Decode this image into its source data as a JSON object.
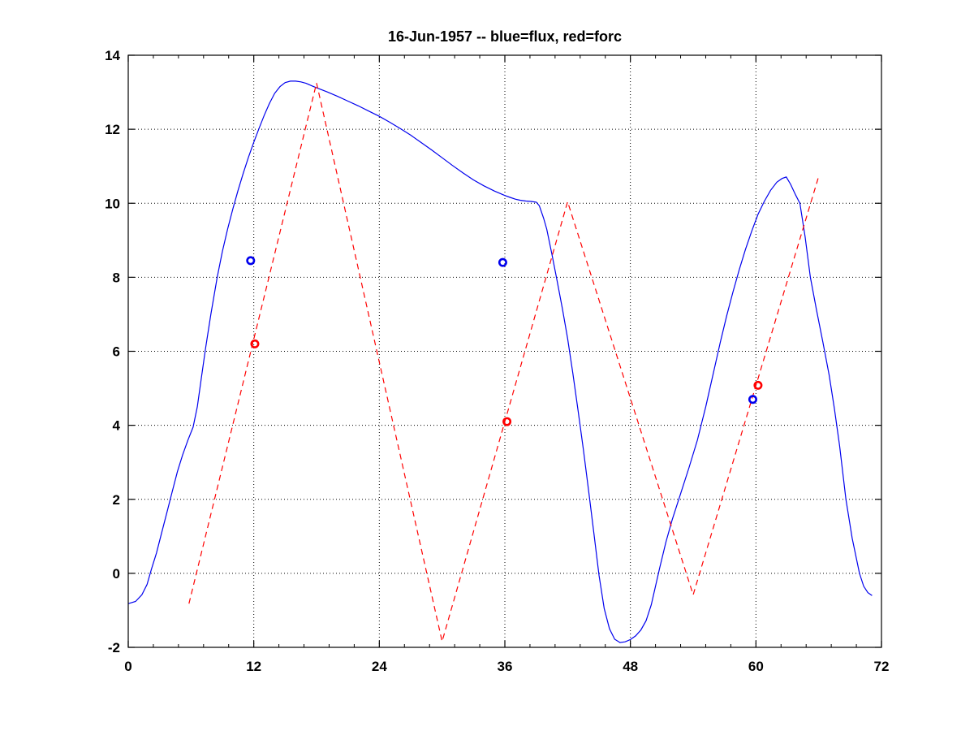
{
  "chart_data": {
    "type": "line",
    "title": "16-Jun-1957 -- blue=flux, red=forc",
    "xlabel": "",
    "ylabel": "",
    "xlim": [
      0,
      72
    ],
    "ylim": [
      -2,
      14
    ],
    "x_ticks": [
      0,
      12,
      24,
      36,
      48,
      60,
      72
    ],
    "y_ticks": [
      -2,
      0,
      2,
      4,
      6,
      8,
      10,
      12,
      14
    ],
    "x_minor_divisions": 5,
    "grid": "dotted black lines at interior major ticks, both axes",
    "legend_position": "encoded in title (blue=flux, red=forc)",
    "colors": {
      "flux": "#0000ee",
      "forc": "#ff0000",
      "axis": "#000000",
      "grid": "#000000",
      "background": "#ffffff"
    },
    "series": [
      {
        "name": "flux",
        "style": "solid",
        "color": "#0000ee",
        "points": [
          [
            0,
            -0.82
          ],
          [
            0.7,
            -0.76
          ],
          [
            1.3,
            -0.58
          ],
          [
            1.8,
            -0.3
          ],
          [
            2.2,
            0.1
          ],
          [
            2.7,
            0.55
          ],
          [
            3.2,
            1.1
          ],
          [
            3.7,
            1.65
          ],
          [
            4.2,
            2.2
          ],
          [
            4.7,
            2.75
          ],
          [
            5.2,
            3.2
          ],
          [
            5.7,
            3.6
          ],
          [
            6.2,
            3.95
          ],
          [
            6.6,
            4.5
          ],
          [
            7,
            5.3
          ],
          [
            7.4,
            6.1
          ],
          [
            7.9,
            7
          ],
          [
            8.5,
            8
          ],
          [
            9,
            8.7
          ],
          [
            9.5,
            9.3
          ],
          [
            10,
            9.85
          ],
          [
            10.5,
            10.35
          ],
          [
            11,
            10.82
          ],
          [
            11.5,
            11.25
          ],
          [
            12,
            11.65
          ],
          [
            12.5,
            12.02
          ],
          [
            13,
            12.38
          ],
          [
            13.5,
            12.7
          ],
          [
            14,
            12.97
          ],
          [
            14.5,
            13.15
          ],
          [
            15,
            13.26
          ],
          [
            15.5,
            13.3
          ],
          [
            16,
            13.3
          ],
          [
            16.5,
            13.28
          ],
          [
            17,
            13.24
          ],
          [
            17.5,
            13.18
          ],
          [
            18,
            13.12
          ],
          [
            19,
            13.01
          ],
          [
            20,
            12.89
          ],
          [
            21,
            12.76
          ],
          [
            22,
            12.63
          ],
          [
            23,
            12.49
          ],
          [
            24,
            12.35
          ],
          [
            25,
            12.19
          ],
          [
            26,
            12.02
          ],
          [
            27,
            11.84
          ],
          [
            28,
            11.64
          ],
          [
            29,
            11.44
          ],
          [
            30,
            11.23
          ],
          [
            31,
            11.02
          ],
          [
            32,
            10.82
          ],
          [
            33,
            10.63
          ],
          [
            34,
            10.47
          ],
          [
            35,
            10.33
          ],
          [
            36,
            10.21
          ],
          [
            36.5,
            10.16
          ],
          [
            37,
            10.11
          ],
          [
            37.5,
            10.08
          ],
          [
            38,
            10.06
          ],
          [
            38.5,
            10.05
          ],
          [
            39,
            10.03
          ],
          [
            39.3,
            9.93
          ],
          [
            39.7,
            9.6
          ],
          [
            40,
            9.3
          ],
          [
            40.5,
            8.62
          ],
          [
            41,
            7.9
          ],
          [
            41.5,
            7.15
          ],
          [
            42,
            6.35
          ],
          [
            42.5,
            5.4
          ],
          [
            43,
            4.4
          ],
          [
            43.5,
            3.35
          ],
          [
            44,
            2.25
          ],
          [
            44.5,
            1.1
          ],
          [
            45,
            -0.05
          ],
          [
            45.5,
            -0.95
          ],
          [
            46,
            -1.5
          ],
          [
            46.5,
            -1.78
          ],
          [
            47,
            -1.87
          ],
          [
            47.5,
            -1.85
          ],
          [
            48,
            -1.79
          ],
          [
            48.5,
            -1.69
          ],
          [
            49,
            -1.53
          ],
          [
            49.5,
            -1.28
          ],
          [
            50,
            -0.85
          ],
          [
            50.4,
            -0.35
          ],
          [
            50.8,
            0.15
          ],
          [
            51.4,
            0.85
          ],
          [
            52,
            1.45
          ],
          [
            52.8,
            2.15
          ],
          [
            53.6,
            2.85
          ],
          [
            54.4,
            3.6
          ],
          [
            55.2,
            4.5
          ],
          [
            56,
            5.5
          ],
          [
            56.6,
            6.25
          ],
          [
            57.2,
            6.95
          ],
          [
            57.8,
            7.6
          ],
          [
            58.4,
            8.2
          ],
          [
            59,
            8.75
          ],
          [
            59.6,
            9.25
          ],
          [
            60.2,
            9.7
          ],
          [
            60.8,
            10.05
          ],
          [
            61.4,
            10.35
          ],
          [
            62,
            10.57
          ],
          [
            62.5,
            10.67
          ],
          [
            62.9,
            10.71
          ],
          [
            63.3,
            10.52
          ],
          [
            63.8,
            10.22
          ],
          [
            64.2,
            10
          ],
          [
            64.7,
            9.1
          ],
          [
            65.2,
            8
          ],
          [
            65.8,
            7.1
          ],
          [
            66.4,
            6.25
          ],
          [
            67,
            5.35
          ],
          [
            67.5,
            4.45
          ],
          [
            68,
            3.45
          ],
          [
            68.6,
            2
          ],
          [
            69.2,
            0.95
          ],
          [
            69.9,
            0
          ],
          [
            70.3,
            -0.35
          ],
          [
            70.7,
            -0.52
          ],
          [
            71.1,
            -0.6
          ]
        ]
      },
      {
        "name": "forc",
        "style": "dashed",
        "color": "#ff0000",
        "points": [
          [
            5.8,
            -0.82
          ],
          [
            18,
            13.25
          ],
          [
            30,
            -1.84
          ],
          [
            42,
            10.04
          ],
          [
            54,
            -0.58
          ],
          [
            66,
            10.73
          ]
        ]
      },
      {
        "name": "flux-markers",
        "style": "open-circles",
        "color": "#0000ee",
        "points": [
          [
            11.7,
            8.45
          ],
          [
            35.8,
            8.4
          ],
          [
            59.7,
            4.7
          ]
        ]
      },
      {
        "name": "forc-markers",
        "style": "open-circles",
        "color": "#ff0000",
        "points": [
          [
            12.1,
            6.2
          ],
          [
            36.2,
            4.1
          ],
          [
            60.2,
            5.08
          ]
        ]
      }
    ]
  }
}
